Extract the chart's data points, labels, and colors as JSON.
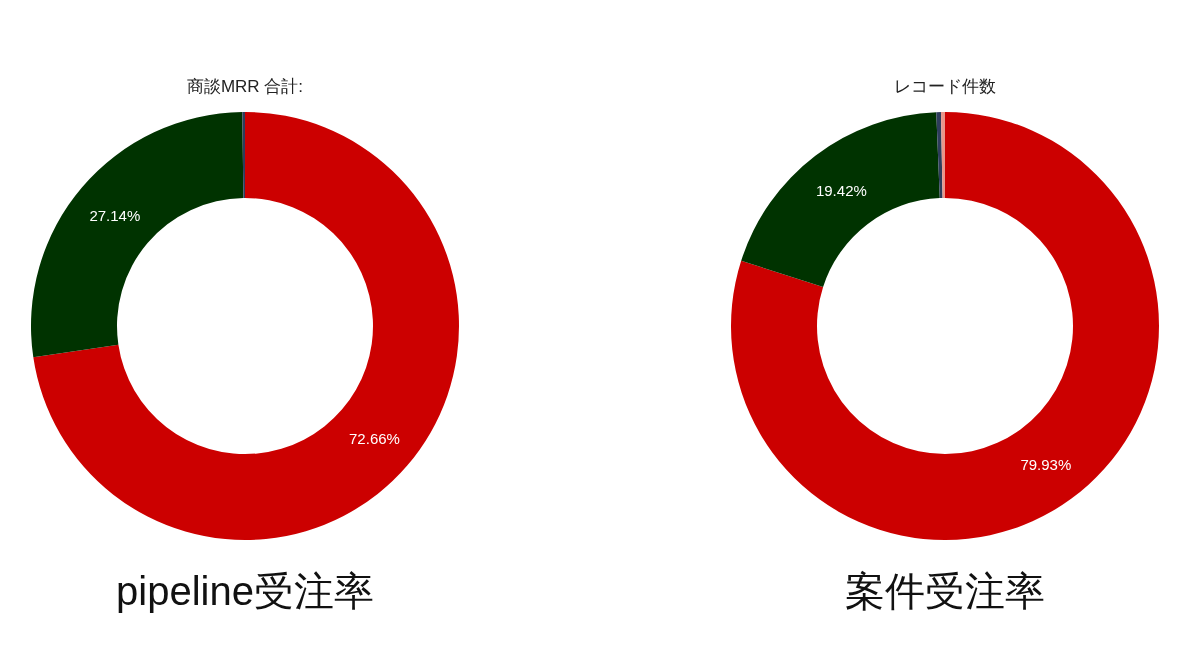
{
  "chart_data": [
    {
      "type": "donut",
      "title": "pipeline受注率",
      "subtitle": "商談MRR 合計:",
      "categories": [
        null,
        null,
        null
      ],
      "values": [
        72.66,
        27.14,
        0.2
      ],
      "colors": [
        "#cc0000",
        "#003300",
        "#2e3d5c"
      ],
      "value_labels": [
        "72.66%",
        "27.14%",
        null
      ]
    },
    {
      "type": "donut",
      "title": "案件受注率",
      "subtitle": "レコード件数",
      "categories": [
        null,
        null,
        null,
        null
      ],
      "values": [
        79.93,
        19.42,
        0.35,
        0.3
      ],
      "colors": [
        "#cc0000",
        "#003300",
        "#2e3d5c",
        "#e8968a"
      ],
      "value_labels": [
        "79.93%",
        "19.42%",
        null,
        null
      ]
    }
  ]
}
